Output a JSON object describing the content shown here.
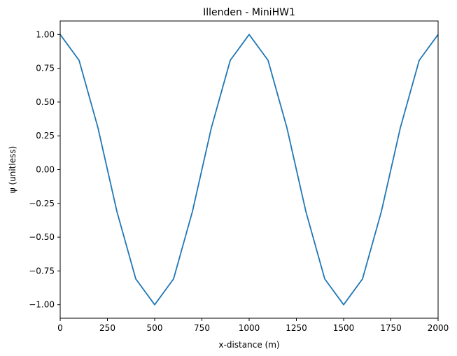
{
  "chart_data": {
    "type": "line",
    "title": "Illenden - MiniHW1",
    "xlabel": "x-distance (m)",
    "ylabel": "ψ (unitless)",
    "xlim": [
      0,
      2000
    ],
    "ylim": [
      -1.1,
      1.1
    ],
    "grid": false,
    "x_ticks": [
      0,
      250,
      500,
      750,
      1000,
      1250,
      1500,
      1750,
      2000
    ],
    "x_tick_labels": [
      "0",
      "250",
      "500",
      "750",
      "1000",
      "1250",
      "1500",
      "1750",
      "2000"
    ],
    "y_ticks": [
      -1.0,
      -0.75,
      -0.5,
      -0.25,
      0.0,
      0.25,
      0.5,
      0.75,
      1.0
    ],
    "y_tick_labels": [
      "−1.00",
      "−0.75",
      "−0.50",
      "−0.25",
      "0.00",
      "0.25",
      "0.50",
      "0.75",
      "1.00"
    ],
    "series": [
      {
        "color": "#1f77b4",
        "x": [
          0,
          100,
          200,
          300,
          400,
          500,
          600,
          700,
          800,
          900,
          1000,
          1100,
          1200,
          1300,
          1400,
          1500,
          1600,
          1700,
          1800,
          1900,
          2000
        ],
        "y": [
          1.0,
          0.809,
          0.309,
          -0.309,
          -0.809,
          -1.0,
          -0.809,
          -0.309,
          0.309,
          0.809,
          1.0,
          0.809,
          0.309,
          -0.309,
          -0.809,
          -1.0,
          -0.809,
          -0.309,
          0.309,
          0.809,
          1.0
        ]
      }
    ]
  }
}
